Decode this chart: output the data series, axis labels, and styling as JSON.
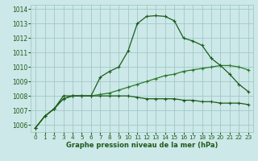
{
  "x": [
    0,
    1,
    2,
    3,
    4,
    5,
    6,
    7,
    8,
    9,
    10,
    11,
    12,
    13,
    14,
    15,
    16,
    17,
    18,
    19,
    20,
    21,
    22,
    23
  ],
  "line1": [
    1005.8,
    1006.6,
    1007.1,
    1007.8,
    1008.0,
    1008.0,
    1008.0,
    1009.3,
    1009.7,
    1010.0,
    1011.1,
    1013.0,
    1013.5,
    1013.55,
    1013.5,
    1013.2,
    1012.0,
    1011.8,
    1011.5,
    1010.6,
    1010.1,
    1009.5,
    1008.8,
    1008.3
  ],
  "line2": [
    1005.8,
    1006.6,
    1007.1,
    1008.0,
    1008.0,
    1008.0,
    1008.0,
    1008.0,
    1008.0,
    1008.0,
    1008.0,
    1007.9,
    1007.8,
    1007.8,
    1007.8,
    1007.8,
    1007.7,
    1007.7,
    1007.6,
    1007.6,
    1007.5,
    1007.5,
    1007.5,
    1007.4
  ],
  "line3": [
    1005.8,
    1006.6,
    1007.1,
    1007.8,
    1008.0,
    1008.0,
    1008.0,
    1008.1,
    1008.2,
    1008.4,
    1008.6,
    1008.8,
    1009.0,
    1009.2,
    1009.4,
    1009.5,
    1009.7,
    1009.8,
    1009.9,
    1010.0,
    1010.1,
    1010.1,
    1010.0,
    1009.8
  ],
  "ylim": [
    1005.5,
    1014.3
  ],
  "yticks": [
    1006,
    1007,
    1008,
    1009,
    1010,
    1011,
    1012,
    1013,
    1014
  ],
  "xticks": [
    0,
    1,
    2,
    3,
    4,
    5,
    6,
    7,
    8,
    9,
    10,
    11,
    12,
    13,
    14,
    15,
    16,
    17,
    18,
    19,
    20,
    21,
    22,
    23
  ],
  "xlabel": "Graphe pression niveau de la mer (hPa)",
  "bg_color": "#cde8e8",
  "grid_color": "#a0c8c8",
  "line_dark": "#1a5c1a",
  "line_med": "#2a7a2a",
  "marker": "D"
}
